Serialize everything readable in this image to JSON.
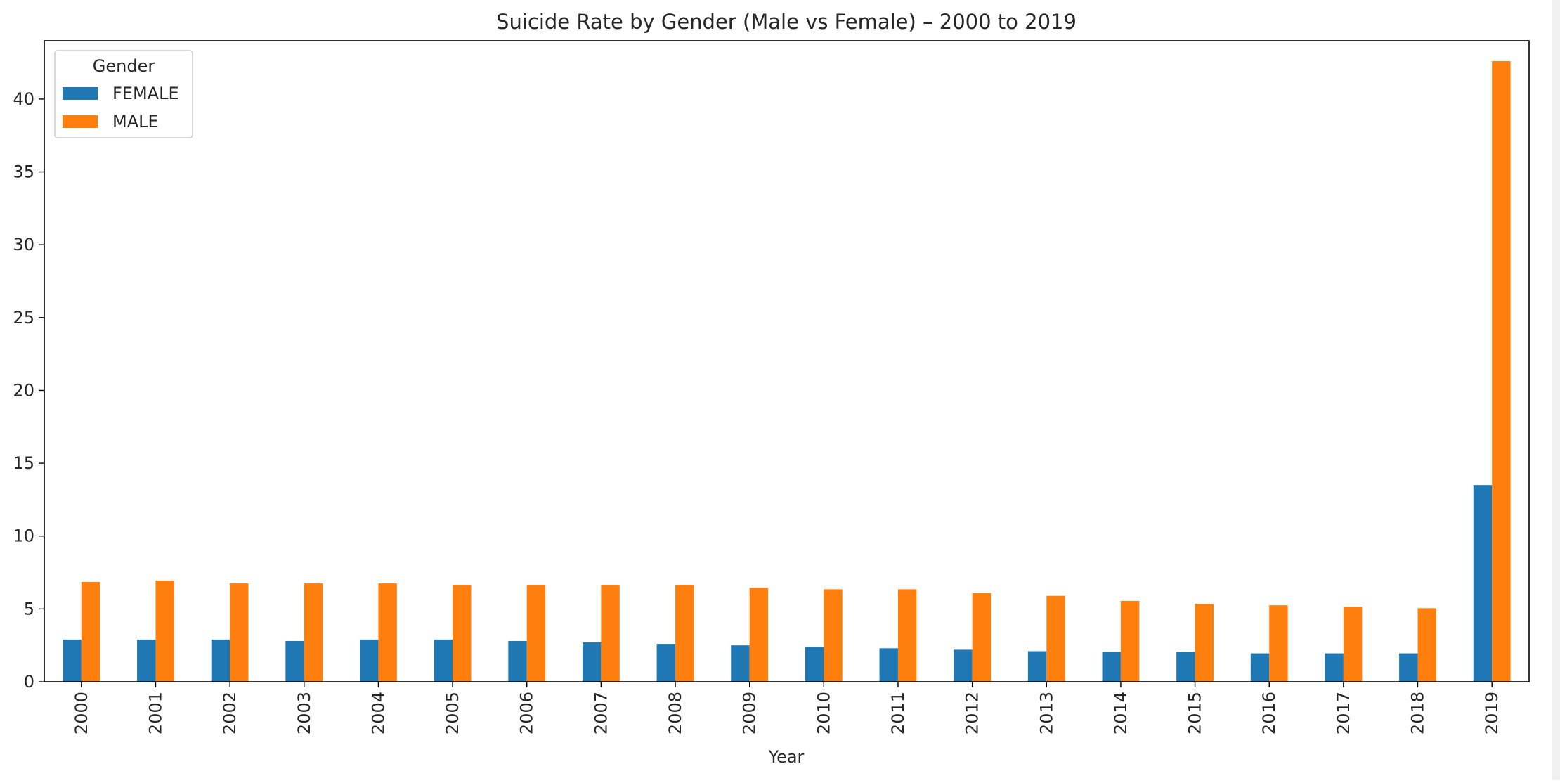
{
  "chart_data": {
    "type": "bar",
    "title": "Suicide Rate by Gender (Male vs Female) – 2000 to 2019",
    "xlabel": "Year",
    "ylabel": "",
    "ylim": [
      0,
      44
    ],
    "yticks": [
      0,
      5,
      10,
      15,
      20,
      25,
      30,
      35,
      40
    ],
    "grid": false,
    "legend": {
      "title": "Gender",
      "position": "top-left"
    },
    "categories": [
      "2000",
      "2001",
      "2002",
      "2003",
      "2004",
      "2005",
      "2006",
      "2007",
      "2008",
      "2009",
      "2010",
      "2011",
      "2012",
      "2013",
      "2014",
      "2015",
      "2016",
      "2017",
      "2018",
      "2019"
    ],
    "series": [
      {
        "name": "FEMALE",
        "color": "#1f77b4",
        "values": [
          2.9,
          2.9,
          2.9,
          2.8,
          2.9,
          2.9,
          2.8,
          2.7,
          2.6,
          2.5,
          2.4,
          2.3,
          2.2,
          2.1,
          2.05,
          2.05,
          1.95,
          1.95,
          1.95,
          13.5
        ]
      },
      {
        "name": "MALE",
        "color": "#ff7f0e",
        "values": [
          6.85,
          6.95,
          6.75,
          6.75,
          6.75,
          6.65,
          6.65,
          6.65,
          6.65,
          6.45,
          6.35,
          6.35,
          6.1,
          5.9,
          5.55,
          5.35,
          5.25,
          5.15,
          5.05,
          42.6
        ]
      }
    ]
  }
}
